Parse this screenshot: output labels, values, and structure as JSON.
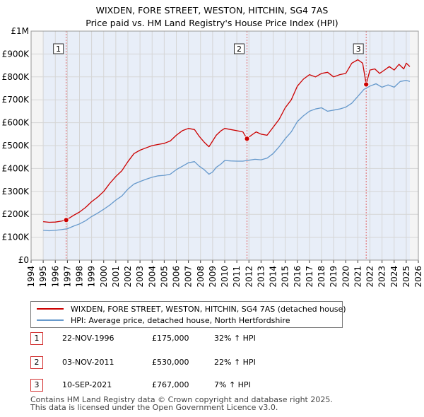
{
  "chart_data": {
    "type": "line",
    "title": "WIXDEN, FORE STREET, WESTON, HITCHIN, SG4 7AS",
    "subtitle": "Price paid vs. HM Land Registry's House Price Index (HPI)",
    "xlim": [
      1994,
      2026
    ],
    "ylim": [
      0,
      1000000
    ],
    "x_ticks": [
      1994,
      1995,
      1996,
      1997,
      1998,
      1999,
      2000,
      2001,
      2002,
      2003,
      2004,
      2005,
      2006,
      2007,
      2008,
      2009,
      2010,
      2011,
      2012,
      2013,
      2014,
      2015,
      2016,
      2017,
      2018,
      2019,
      2020,
      2021,
      2022,
      2023,
      2024,
      2025,
      2026
    ],
    "y_ticks": [
      {
        "value": 0,
        "label": "£0"
      },
      {
        "value": 100000,
        "label": "£100K"
      },
      {
        "value": 200000,
        "label": "£200K"
      },
      {
        "value": 300000,
        "label": "£300K"
      },
      {
        "value": 400000,
        "label": "£400K"
      },
      {
        "value": 500000,
        "label": "£500K"
      },
      {
        "value": 600000,
        "label": "£600K"
      },
      {
        "value": 700000,
        "label": "£700K"
      },
      {
        "value": 800000,
        "label": "£800K"
      },
      {
        "value": 900000,
        "label": "£900K"
      },
      {
        "value": 1000000,
        "label": "£1M"
      }
    ],
    "data_range": [
      1995.0,
      2025.3
    ],
    "grid": true,
    "legend_position": "bottom",
    "series": [
      {
        "name": "WIXDEN, FORE STREET, WESTON, HITCHIN, SG4 7AS (detached house)",
        "color": "#cc0000",
        "x": [
          1995.0,
          1995.5,
          1996.0,
          1996.5,
          1996.9,
          1997.5,
          1998.0,
          1998.5,
          1999.0,
          1999.5,
          2000.0,
          2000.5,
          2001.0,
          2001.5,
          2002.0,
          2002.5,
          2003.0,
          2003.5,
          2004.0,
          2004.5,
          2005.0,
          2005.5,
          2006.0,
          2006.5,
          2007.0,
          2007.5,
          2007.9,
          2008.3,
          2008.7,
          2009.0,
          2009.3,
          2009.7,
          2010.0,
          2010.5,
          2011.0,
          2011.5,
          2011.84,
          2012.2,
          2012.6,
          2013.0,
          2013.5,
          2014.0,
          2014.5,
          2015.0,
          2015.5,
          2016.0,
          2016.5,
          2017.0,
          2017.5,
          2018.0,
          2018.5,
          2019.0,
          2019.5,
          2020.0,
          2020.5,
          2021.0,
          2021.4,
          2021.69,
          2022.0,
          2022.4,
          2022.8,
          2023.2,
          2023.6,
          2024.0,
          2024.4,
          2024.8,
          2025.0,
          2025.3
        ],
        "values": [
          168000,
          165000,
          166000,
          170000,
          175000,
          195000,
          210000,
          230000,
          255000,
          275000,
          300000,
          335000,
          365000,
          390000,
          430000,
          465000,
          480000,
          490000,
          500000,
          505000,
          510000,
          520000,
          545000,
          565000,
          575000,
          570000,
          540000,
          515000,
          495000,
          520000,
          545000,
          565000,
          575000,
          570000,
          565000,
          560000,
          530000,
          545000,
          560000,
          550000,
          545000,
          580000,
          615000,
          665000,
          700000,
          760000,
          790000,
          810000,
          800000,
          815000,
          820000,
          800000,
          810000,
          815000,
          860000,
          875000,
          860000,
          767000,
          830000,
          835000,
          815000,
          830000,
          845000,
          830000,
          855000,
          835000,
          860000,
          845000
        ]
      },
      {
        "name": "HPI: Average price, detached house, North Hertfordshire",
        "color": "#6699cc",
        "x": [
          1995.0,
          1995.5,
          1996.0,
          1996.5,
          1997.0,
          1997.5,
          1998.0,
          1998.5,
          1999.0,
          1999.5,
          2000.0,
          2000.5,
          2001.0,
          2001.5,
          2002.0,
          2002.5,
          2003.0,
          2003.5,
          2004.0,
          2004.5,
          2005.0,
          2005.5,
          2006.0,
          2006.5,
          2007.0,
          2007.5,
          2007.9,
          2008.3,
          2008.7,
          2009.0,
          2009.3,
          2009.7,
          2010.0,
          2010.5,
          2011.0,
          2011.5,
          2012.0,
          2012.5,
          2013.0,
          2013.5,
          2014.0,
          2014.5,
          2015.0,
          2015.5,
          2016.0,
          2016.5,
          2017.0,
          2017.5,
          2018.0,
          2018.5,
          2019.0,
          2019.5,
          2020.0,
          2020.5,
          2021.0,
          2021.5,
          2022.0,
          2022.5,
          2023.0,
          2023.5,
          2024.0,
          2024.5,
          2025.0,
          2025.3
        ],
        "values": [
          130000,
          128000,
          130000,
          133000,
          137000,
          148000,
          158000,
          172000,
          190000,
          205000,
          222000,
          240000,
          262000,
          280000,
          310000,
          332000,
          343000,
          353000,
          362000,
          368000,
          370000,
          375000,
          395000,
          410000,
          425000,
          430000,
          410000,
          395000,
          375000,
          385000,
          405000,
          420000,
          435000,
          433000,
          432000,
          432000,
          436000,
          440000,
          438000,
          445000,
          465000,
          495000,
          530000,
          560000,
          605000,
          630000,
          650000,
          660000,
          665000,
          650000,
          655000,
          660000,
          668000,
          685000,
          715000,
          745000,
          760000,
          770000,
          755000,
          765000,
          755000,
          780000,
          785000,
          780000
        ]
      }
    ],
    "sale_markers": [
      {
        "label": "1",
        "x": 1996.9,
        "value": 175000
      },
      {
        "label": "2",
        "x": 2011.84,
        "value": 530000
      },
      {
        "label": "3",
        "x": 2021.69,
        "value": 767000
      }
    ]
  },
  "legend": {
    "property_label": "WIXDEN, FORE STREET, WESTON, HITCHIN, SG4 7AS (detached house)",
    "hpi_label": "HPI: Average price, detached house, North Hertfordshire",
    "property_color": "#cc0000",
    "hpi_color": "#6699cc"
  },
  "sales": [
    {
      "num": "1",
      "date": "22-NOV-1996",
      "price": "£175,000",
      "hpi": "32% ↑ HPI"
    },
    {
      "num": "2",
      "date": "03-NOV-2011",
      "price": "£530,000",
      "hpi": "22% ↑ HPI"
    },
    {
      "num": "3",
      "date": "10-SEP-2021",
      "price": "£767,000",
      "hpi": "7% ↑ HPI"
    }
  ],
  "footer": {
    "line1": "Contains HM Land Registry data © Crown copyright and database right 2025.",
    "line2": "This data is licensed under the Open Government Licence v3.0."
  }
}
